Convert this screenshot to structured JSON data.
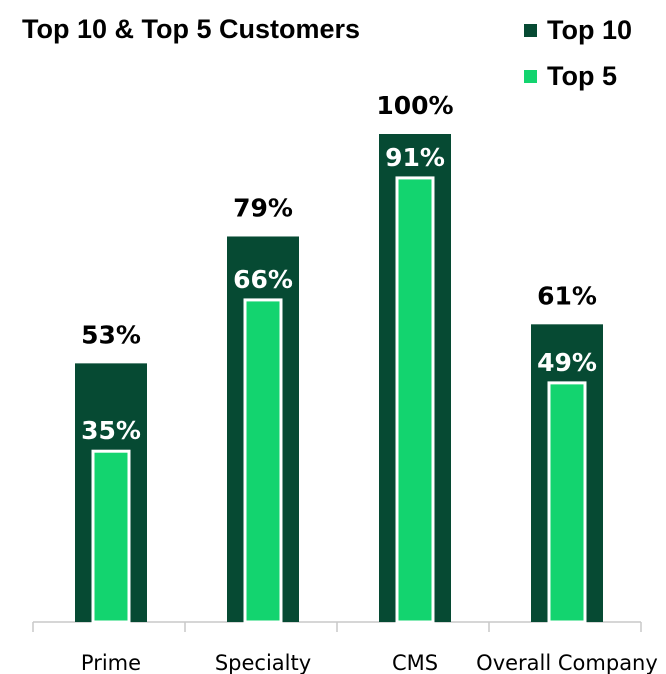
{
  "title": "Top 10 & Top 5 Customers",
  "colors": {
    "top10": "#064a33",
    "top5": "#13d46f",
    "axis": "#c9c9c9"
  },
  "chart_data": {
    "type": "bar",
    "title": "Top 10 & Top 5 Customers",
    "categories": [
      "Prime",
      "Specialty",
      "CMS",
      "Overall Company"
    ],
    "series": [
      {
        "name": "Top 10",
        "values": [
          53,
          79,
          100,
          61
        ],
        "labels": [
          "53%",
          "79%",
          "100%",
          "61%"
        ]
      },
      {
        "name": "Top 5",
        "values": [
          35,
          66,
          91,
          49
        ],
        "labels": [
          "35%",
          "66%",
          "91%",
          "49%"
        ]
      }
    ],
    "ylim": [
      0,
      100
    ],
    "grid": false,
    "legend_position": "top-right",
    "xlabel": "",
    "ylabel": ""
  }
}
